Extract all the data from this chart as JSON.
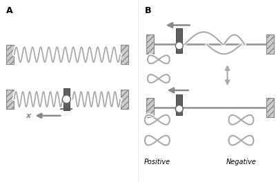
{
  "bg_color": "#ffffff",
  "wall_color": "#888888",
  "helix_color": "#aaaaaa",
  "rod_color": "#606060",
  "arrow_color": "#888888",
  "label_A": "A",
  "label_B": "B",
  "label_positive": "Positive",
  "label_negative": "Negative",
  "label_x": "x",
  "figsize": [
    4.0,
    2.64
  ],
  "dpi": 100
}
